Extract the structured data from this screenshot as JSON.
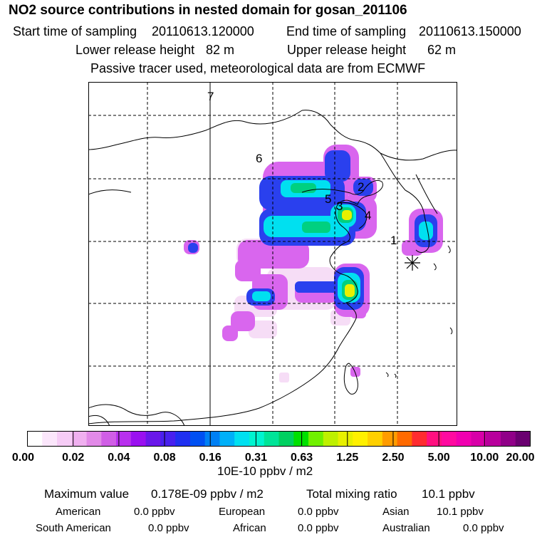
{
  "header": {
    "title": "NO2 source contributions in nested domain for gosan_201106",
    "start_label": "Start time of sampling",
    "start_value": "20110613.120000",
    "end_label": "End time of sampling",
    "end_value": "20110613.150000",
    "lower_label": "Lower release height",
    "lower_value": "82 m",
    "upper_label": "Upper release height",
    "upper_value": "62 m",
    "info": "Passive tracer used, meteorological data are from ECMWF"
  },
  "map": {
    "region_labels": [
      "1",
      "2",
      "3",
      "4",
      "5",
      "6",
      "7"
    ],
    "receptor_icon": "asterisk-receptor-icon"
  },
  "colorbar": {
    "colors": [
      "#ffffff",
      "#fbe6fb",
      "#f6ccf6",
      "#f0b0f0",
      "#e28ae8",
      "#d05ee6",
      "#b830ee",
      "#9a10f0",
      "#6a18ea",
      "#4820ee",
      "#2030f0",
      "#0050f2",
      "#0080f4",
      "#00b0f8",
      "#00e0f0",
      "#00f4d0",
      "#00e498",
      "#00d060",
      "#00e000",
      "#70f000",
      "#bef000",
      "#e8f000",
      "#fff000",
      "#ffd000",
      "#ff9c00",
      "#ff6a00",
      "#ff2c30",
      "#ff1080",
      "#ff0aa0",
      "#f000b0",
      "#d800a8",
      "#b8009c",
      "#900088",
      "#6a0070"
    ],
    "ticks": [
      "0.00",
      "0.02",
      "0.04",
      "0.08",
      "0.16",
      "0.31",
      "0.63",
      "1.25",
      "2.50",
      "5.00",
      "10.00",
      "20.00"
    ],
    "unit": "10E-10 ppbv / m2"
  },
  "stats": {
    "max_label": "Maximum value",
    "max_value": "0.178E-09 ppbv / m2",
    "total_label": "Total mixing ratio",
    "total_value": "10.1 ppbv",
    "regions": [
      {
        "name": "American",
        "value": "0.0 ppbv"
      },
      {
        "name": "European",
        "value": "0.0 ppbv"
      },
      {
        "name": "Asian",
        "value": "10.1 ppbv"
      },
      {
        "name": "South American",
        "value": "0.0 ppbv"
      },
      {
        "name": "African",
        "value": "0.0 ppbv"
      },
      {
        "name": "Australian",
        "value": "0.0 ppbv"
      }
    ]
  }
}
